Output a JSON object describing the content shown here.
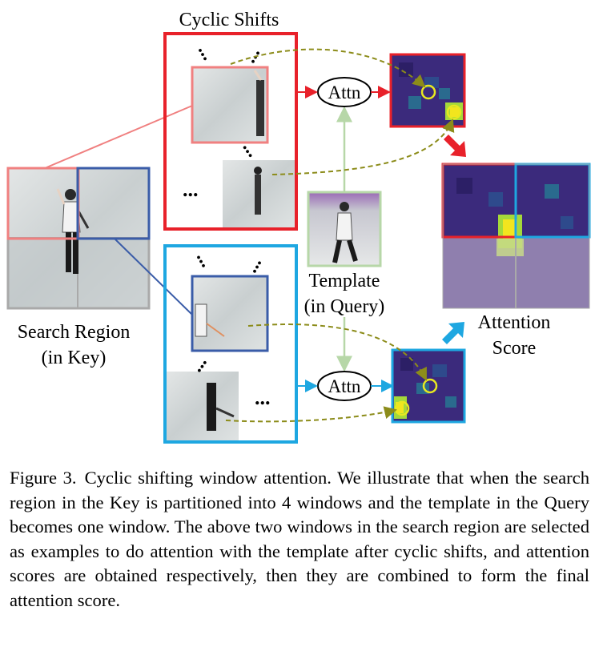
{
  "figure": {
    "labels": {
      "cyclic_shifts": "Cyclic Shifts",
      "search_region_line1": "Search Region",
      "search_region_line2": "(in Key)",
      "template_line1": "Template",
      "template_line2": "(in Query)",
      "attn_top": "Attn",
      "attn_bottom": "Attn",
      "attention_score_line1": "Attention",
      "attention_score_line2": "Score",
      "ellipsis": "..."
    },
    "colors": {
      "red_box": "#e8212a",
      "blue_box": "#1ea7e1",
      "pink_window": "#f08080",
      "dark_blue_window": "#3a5ca8",
      "olive_arrow": "#8c8c1a",
      "green_arrow": "#b7d7a8",
      "heatmap_bg": "#3b1f7a",
      "highlight": "#e8e820"
    }
  },
  "caption": {
    "figure_number": "Figure 3.",
    "text": "Cyclic shifting window attention. We illustrate that when the search region in the Key is partitioned into 4 windows and the template in the Query becomes one window. The above two windows in the search region are selected as examples to do attention with the template after cyclic shifts, and attention scores are obtained respectively, then they are combined to form the final attention score."
  }
}
